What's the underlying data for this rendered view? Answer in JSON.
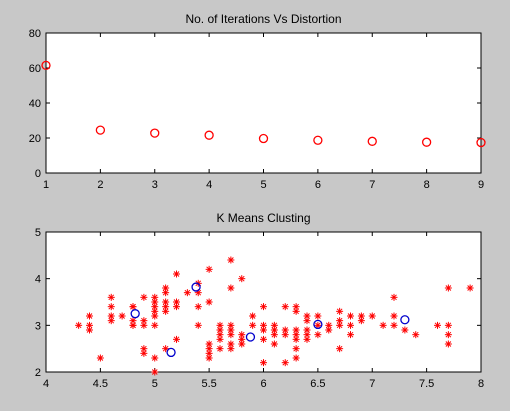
{
  "chart_data": [
    {
      "type": "scatter",
      "title": "No. of Iterations Vs Distortion",
      "xlim": [
        1,
        9
      ],
      "ylim": [
        0,
        80
      ],
      "xticks": [
        "1",
        "2",
        "3",
        "4",
        "5",
        "6",
        "7",
        "8",
        "9"
      ],
      "yticks": [
        "0",
        "20",
        "40",
        "60",
        "80"
      ],
      "grid": false,
      "series": [
        {
          "marker": "circle",
          "color": "#ff0000",
          "x": [
            1,
            2,
            3,
            4,
            5,
            6,
            7,
            8,
            9
          ],
          "y": [
            61.5,
            24.5,
            22.8,
            21.6,
            19.7,
            18.7,
            18.1,
            17.6,
            17.4
          ]
        }
      ]
    },
    {
      "type": "scatter",
      "title": "K Means Clusting",
      "xlim": [
        4,
        8
      ],
      "ylim": [
        2,
        5
      ],
      "xticks": [
        "4",
        "4.5",
        "5",
        "5.5",
        "6",
        "6.5",
        "7",
        "7.5",
        "8"
      ],
      "yticks": [
        "2",
        "3",
        "4",
        "5"
      ],
      "grid": false,
      "series": [
        {
          "marker": "asterisk",
          "color": "#ff0000",
          "points": [
            [
              4.3,
              3.0
            ],
            [
              4.4,
              2.9
            ],
            [
              4.4,
              3.0
            ],
            [
              4.4,
              3.2
            ],
            [
              4.5,
              2.3
            ],
            [
              4.6,
              3.1
            ],
            [
              4.6,
              3.2
            ],
            [
              4.6,
              3.4
            ],
            [
              4.6,
              3.6
            ],
            [
              4.7,
              3.2
            ],
            [
              4.8,
              3.0
            ],
            [
              4.8,
              3.0
            ],
            [
              4.8,
              3.1
            ],
            [
              4.8,
              3.4
            ],
            [
              4.8,
              3.4
            ],
            [
              4.9,
              2.4
            ],
            [
              4.9,
              2.5
            ],
            [
              4.9,
              3.0
            ],
            [
              4.9,
              3.1
            ],
            [
              4.9,
              3.6
            ],
            [
              5.0,
              2.0
            ],
            [
              5.0,
              2.3
            ],
            [
              5.0,
              3.0
            ],
            [
              5.0,
              3.2
            ],
            [
              5.0,
              3.3
            ],
            [
              5.0,
              3.4
            ],
            [
              5.0,
              3.5
            ],
            [
              5.0,
              3.6
            ],
            [
              5.1,
              2.5
            ],
            [
              5.1,
              3.3
            ],
            [
              5.1,
              3.4
            ],
            [
              5.1,
              3.5
            ],
            [
              5.1,
              3.7
            ],
            [
              5.1,
              3.8
            ],
            [
              5.2,
              2.7
            ],
            [
              5.2,
              3.4
            ],
            [
              5.2,
              3.5
            ],
            [
              5.2,
              4.1
            ],
            [
              5.3,
              3.7
            ],
            [
              5.4,
              3.0
            ],
            [
              5.4,
              3.4
            ],
            [
              5.4,
              3.7
            ],
            [
              5.4,
              3.9
            ],
            [
              5.5,
              2.3
            ],
            [
              5.5,
              2.4
            ],
            [
              5.5,
              2.5
            ],
            [
              5.5,
              2.6
            ],
            [
              5.5,
              3.5
            ],
            [
              5.5,
              4.2
            ],
            [
              5.6,
              2.5
            ],
            [
              5.6,
              2.7
            ],
            [
              5.6,
              2.8
            ],
            [
              5.6,
              2.9
            ],
            [
              5.6,
              3.0
            ],
            [
              5.7,
              2.5
            ],
            [
              5.7,
              2.6
            ],
            [
              5.7,
              2.8
            ],
            [
              5.7,
              2.9
            ],
            [
              5.7,
              3.0
            ],
            [
              5.7,
              3.8
            ],
            [
              5.7,
              4.4
            ],
            [
              5.8,
              2.6
            ],
            [
              5.8,
              2.7
            ],
            [
              5.8,
              2.8
            ],
            [
              5.8,
              4.0
            ],
            [
              5.9,
              3.0
            ],
            [
              5.9,
              3.2
            ],
            [
              6.0,
              2.2
            ],
            [
              6.0,
              2.7
            ],
            [
              6.0,
              2.9
            ],
            [
              6.0,
              3.0
            ],
            [
              6.0,
              3.4
            ],
            [
              6.1,
              2.6
            ],
            [
              6.1,
              2.8
            ],
            [
              6.1,
              2.9
            ],
            [
              6.1,
              3.0
            ],
            [
              6.2,
              2.2
            ],
            [
              6.2,
              2.8
            ],
            [
              6.2,
              2.9
            ],
            [
              6.2,
              3.4
            ],
            [
              6.3,
              2.3
            ],
            [
              6.3,
              2.5
            ],
            [
              6.3,
              2.7
            ],
            [
              6.3,
              2.8
            ],
            [
              6.3,
              2.9
            ],
            [
              6.3,
              3.3
            ],
            [
              6.3,
              3.4
            ],
            [
              6.4,
              2.7
            ],
            [
              6.4,
              2.8
            ],
            [
              6.4,
              2.9
            ],
            [
              6.4,
              3.1
            ],
            [
              6.4,
              3.2
            ],
            [
              6.5,
              2.8
            ],
            [
              6.5,
              3.0
            ],
            [
              6.5,
              3.2
            ],
            [
              6.6,
              2.9
            ],
            [
              6.6,
              3.0
            ],
            [
              6.7,
              2.5
            ],
            [
              6.7,
              3.0
            ],
            [
              6.7,
              3.1
            ],
            [
              6.7,
              3.3
            ],
            [
              6.8,
              2.8
            ],
            [
              6.8,
              3.0
            ],
            [
              6.8,
              3.2
            ],
            [
              6.9,
              3.1
            ],
            [
              6.9,
              3.2
            ],
            [
              7.0,
              3.2
            ],
            [
              7.1,
              3.0
            ],
            [
              7.2,
              3.0
            ],
            [
              7.2,
              3.2
            ],
            [
              7.2,
              3.6
            ],
            [
              7.3,
              2.9
            ],
            [
              7.4,
              2.8
            ],
            [
              7.6,
              3.0
            ],
            [
              7.7,
              2.6
            ],
            [
              7.7,
              2.8
            ],
            [
              7.7,
              3.0
            ],
            [
              7.7,
              3.8
            ],
            [
              7.9,
              3.8
            ]
          ]
        },
        {
          "marker": "circle",
          "color": "#0000cc",
          "points": [
            [
              4.82,
              3.25
            ],
            [
              5.15,
              2.42
            ],
            [
              5.38,
              3.82
            ],
            [
              5.88,
              2.75
            ],
            [
              6.5,
              3.02
            ],
            [
              7.3,
              3.12
            ]
          ]
        }
      ]
    }
  ]
}
